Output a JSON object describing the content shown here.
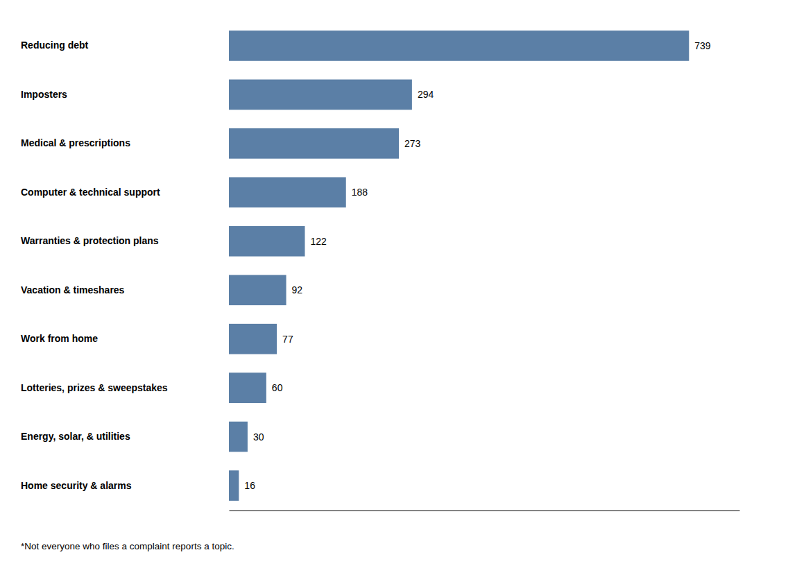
{
  "chart_data": {
    "type": "bar",
    "orientation": "horizontal",
    "categories": [
      "Reducing debt",
      "Imposters",
      "Medical & prescriptions",
      "Computer & technical support",
      "Warranties & protection plans",
      "Vacation & timeshares",
      "Work from home",
      "Lotteries, prizes & sweepstakes",
      "Energy, solar, & utilities",
      "Home security & alarms"
    ],
    "values": [
      739,
      294,
      273,
      188,
      122,
      92,
      77,
      60,
      30,
      16
    ],
    "color": "#5B7FA6",
    "xlim": [
      0,
      820
    ],
    "tick_labels": false,
    "data_labels": true,
    "grid": false,
    "annotations": [
      "*Not everyone who files a complaint reports a topic."
    ]
  }
}
